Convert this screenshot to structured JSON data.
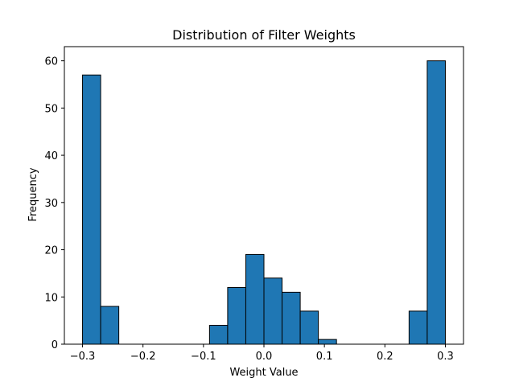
{
  "chart_data": {
    "type": "bar",
    "title": "Distribution of Filter Weights",
    "xlabel": "Weight Value",
    "ylabel": "Frequency",
    "bin_edges": [
      -0.3,
      -0.27,
      -0.24,
      -0.21,
      -0.18,
      -0.15,
      -0.12,
      -0.09,
      -0.06,
      -0.03,
      0.0,
      0.03,
      0.06,
      0.09,
      0.12,
      0.15,
      0.18,
      0.21,
      0.24,
      0.27,
      0.3
    ],
    "values": [
      57,
      8,
      0,
      0,
      0,
      0,
      0,
      4,
      12,
      19,
      14,
      11,
      7,
      1,
      0,
      0,
      0,
      0,
      7,
      60
    ],
    "xlim": [
      -0.33,
      0.33
    ],
    "ylim": [
      0,
      63
    ],
    "xticks": [
      -0.3,
      -0.2,
      -0.1,
      0.0,
      0.1,
      0.2,
      0.3
    ],
    "xtick_labels": [
      "−0.3",
      "−0.2",
      "−0.1",
      "0.0",
      "0.1",
      "0.2",
      "0.3"
    ],
    "yticks": [
      0,
      10,
      20,
      30,
      40,
      50,
      60
    ],
    "ytick_labels": [
      "0",
      "10",
      "20",
      "30",
      "40",
      "50",
      "60"
    ],
    "bar_color": "#1f77b4",
    "edge_color": "#000000",
    "grid": false
  }
}
